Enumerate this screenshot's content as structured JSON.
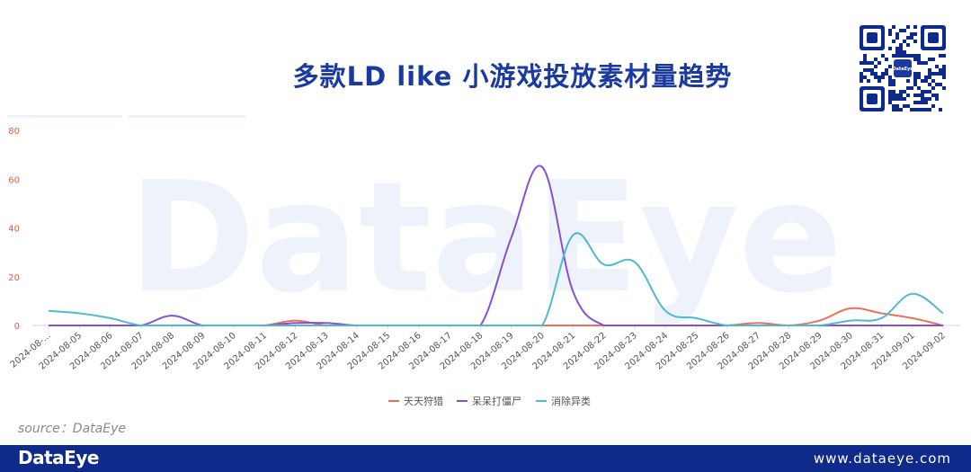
{
  "header": {
    "title": "多款LD like 小游戏投放素材量趋势"
  },
  "qr_badge": "DataEye",
  "watermark": "DataEye",
  "source": "source：DataEye",
  "footer": {
    "brand": "DataEye",
    "url": "www.dataeye.com"
  },
  "colors": {
    "title": "#1a3aa0",
    "footer": "#0e2b8c",
    "series1": "#e8705a",
    "series2": "#8a4fd0",
    "series3": "#4fb9cf",
    "axis_tick": "#e05c4a"
  },
  "chart_data": {
    "type": "line",
    "title": "多款LD like 小游戏投放素材量趋势",
    "xlabel": "",
    "ylabel": "",
    "ylim": [
      0,
      80
    ],
    "yticks": [
      0,
      20,
      40,
      60,
      80
    ],
    "grid": false,
    "legend": "bottom-center",
    "categories": [
      "2024-08-...",
      "2024-08-05",
      "2024-08-06",
      "2024-08-07",
      "2024-08-08",
      "2024-08-09",
      "2024-08-10",
      "2024-08-11",
      "2024-08-12",
      "2024-08-13",
      "2024-08-14",
      "2024-08-15",
      "2024-08-16",
      "2024-08-17",
      "2024-08-18",
      "2024-08-19",
      "2024-08-20",
      "2024-08-21",
      "2024-08-22",
      "2024-08-23",
      "2024-08-24",
      "2024-08-25",
      "2024-08-26",
      "2024-08-27",
      "2024-08-28",
      "2024-08-29",
      "2024-08-30",
      "2024-08-31",
      "2024-09-01",
      "2024-09-02"
    ],
    "series": [
      {
        "name": "天天狩猎",
        "color": "#e8705a",
        "values": [
          0,
          0,
          0,
          0,
          0,
          0,
          0,
          0,
          2,
          0,
          0,
          0,
          0,
          0,
          0,
          0,
          0,
          0,
          0,
          0,
          0,
          0,
          0,
          1,
          0,
          2,
          7,
          5,
          3,
          0
        ]
      },
      {
        "name": "呆呆打僵尸",
        "color": "#8a4fd0",
        "values": [
          0,
          0,
          0,
          0,
          4,
          0,
          0,
          0,
          1,
          1,
          0,
          0,
          0,
          0,
          0,
          36,
          65,
          14,
          0,
          0,
          0,
          0,
          0,
          0,
          0,
          0,
          0,
          0,
          0,
          0
        ]
      },
      {
        "name": "消除异类",
        "color": "#4fb9cf",
        "values": [
          6,
          5,
          3,
          0,
          0,
          0,
          0,
          0,
          0,
          0,
          0,
          0,
          0,
          0,
          0,
          0,
          0,
          37,
          25,
          26,
          6,
          3,
          0,
          0,
          0,
          0,
          2,
          3,
          13,
          5
        ]
      }
    ]
  }
}
